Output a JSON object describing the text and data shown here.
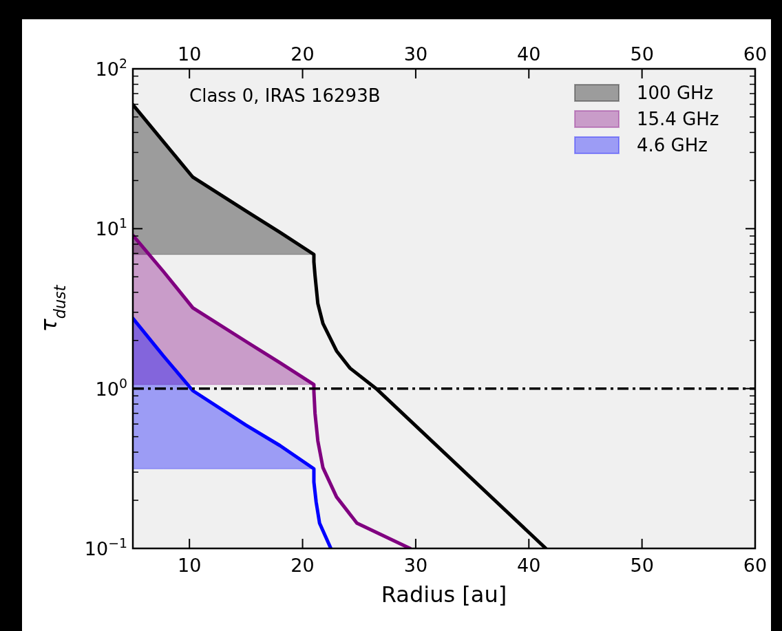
{
  "chart_data": {
    "type": "line",
    "xlabel": "Radius [au]",
    "ylabel": "τ$_{dust}$",
    "xlim": [
      5,
      60
    ],
    "xticks": [
      10,
      20,
      30,
      40,
      50,
      60
    ],
    "x2lim": [
      5,
      60
    ],
    "x2ticks": [
      10,
      20,
      30,
      40,
      50,
      60
    ],
    "ylim": [
      0.1,
      100
    ],
    "yticks": [
      {
        "value": 0.1,
        "label": "10$^{−1}$"
      },
      {
        "value": 1,
        "label": "10$^{0}$"
      },
      {
        "value": 10,
        "label": "10$^{1}$"
      },
      {
        "value": 100,
        "label": "10$^{2}$"
      }
    ],
    "log": "y",
    "legend": "top right",
    "annotations": [
      "Class 0, IRAS 16293B"
    ],
    "ref_lines": [
      {
        "axis": "y",
        "value": 1,
        "color": "#000000",
        "line_style": "dashdot"
      }
    ],
    "series": [
      {
        "name": "100 GHz",
        "color": "#000000",
        "x": [
          5,
          7.7,
          10.3,
          15,
          18,
          21,
          21,
          21.1,
          21.35,
          21.8,
          23,
          24.2,
          26.5,
          41.5
        ],
        "values": [
          59.7,
          35,
          21,
          12.9,
          9.5,
          6.9,
          6.2,
          5.1,
          3.4,
          2.55,
          1.72,
          1.34,
          1.0,
          0.1
        ],
        "lower": [
          6.9,
          6.9,
          6.9,
          6.9,
          6.9,
          6.9,
          null,
          null,
          null,
          null,
          null,
          null,
          null,
          null
        ],
        "upper": [
          59.7,
          35,
          21,
          12.9,
          9.5,
          6.9,
          null,
          null,
          null,
          null,
          null,
          null,
          null,
          null
        ]
      },
      {
        "name": "15.4 GHz",
        "color": "#800080",
        "x": [
          5,
          7.7,
          10.3,
          15,
          18,
          21,
          21,
          21.1,
          21.35,
          21.8,
          23,
          24.8,
          29.5
        ],
        "values": [
          9.1,
          5.4,
          3.2,
          1.97,
          1.45,
          1.06,
          0.96,
          0.7,
          0.47,
          0.32,
          0.21,
          0.144,
          0.1
        ],
        "lower": [
          1.06,
          1.06,
          1.06,
          1.06,
          1.06,
          1.06,
          null,
          null,
          null,
          null,
          null,
          null,
          null
        ],
        "upper": [
          9.1,
          5.4,
          3.2,
          1.97,
          1.45,
          1.06,
          null,
          null,
          null,
          null,
          null,
          null,
          null
        ]
      },
      {
        "name": "4.6 GHz",
        "color": "#0000ff",
        "x": [
          5,
          7.7,
          10.3,
          15,
          18,
          21,
          21,
          21.2,
          21.5,
          22.5
        ],
        "values": [
          2.75,
          1.6,
          0.97,
          0.59,
          0.44,
          0.315,
          0.26,
          0.195,
          0.144,
          0.1
        ],
        "lower": [
          0.315,
          0.315,
          0.315,
          0.315,
          0.315,
          0.315,
          null,
          null,
          null,
          null
        ],
        "upper": [
          2.75,
          1.6,
          0.97,
          0.59,
          0.44,
          0.315,
          null,
          null,
          null,
          null
        ]
      }
    ]
  }
}
